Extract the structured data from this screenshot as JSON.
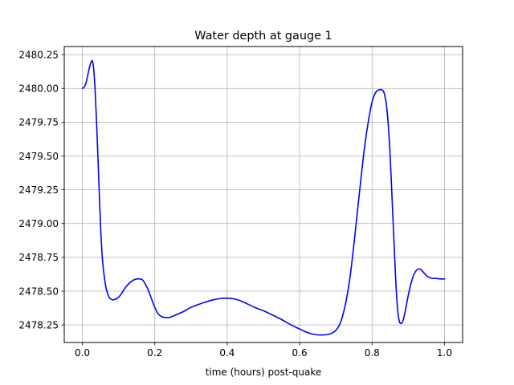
{
  "chart_data": {
    "type": "line",
    "title": "Water depth at gauge 1",
    "xlabel": "time (hours) post-quake",
    "ylabel": "",
    "xlim": [
      -0.05,
      1.05
    ],
    "ylim": [
      2478.12,
      2480.31
    ],
    "grid": true,
    "xticks": [
      0.0,
      0.2,
      0.4,
      0.6,
      0.8,
      1.0
    ],
    "xtick_labels": [
      "0.0",
      "0.2",
      "0.4",
      "0.6",
      "0.8",
      "1.0"
    ],
    "yticks": [
      2478.25,
      2478.5,
      2478.75,
      2479.0,
      2479.25,
      2479.5,
      2479.75,
      2480.0,
      2480.25
    ],
    "ytick_labels": [
      "2478.25",
      "2478.50",
      "2478.75",
      "2479.00",
      "2479.25",
      "2479.50",
      "2479.75",
      "2480.00",
      "2480.25"
    ],
    "series": [
      {
        "name": "gauge 1",
        "color": "#0000ff",
        "x": [
          0.0,
          0.005,
          0.01,
          0.015,
          0.02,
          0.025,
          0.028,
          0.031,
          0.035,
          0.04,
          0.045,
          0.05,
          0.055,
          0.06,
          0.065,
          0.07,
          0.075,
          0.08,
          0.085,
          0.09,
          0.095,
          0.1,
          0.105,
          0.11,
          0.12,
          0.13,
          0.14,
          0.15,
          0.16,
          0.165,
          0.17,
          0.18,
          0.19,
          0.2,
          0.21,
          0.22,
          0.23,
          0.24,
          0.25,
          0.28,
          0.3,
          0.33,
          0.36,
          0.38,
          0.4,
          0.42,
          0.44,
          0.46,
          0.48,
          0.5,
          0.52,
          0.55,
          0.58,
          0.6,
          0.62,
          0.64,
          0.66,
          0.68,
          0.69,
          0.7,
          0.71,
          0.72,
          0.73,
          0.74,
          0.75,
          0.76,
          0.77,
          0.78,
          0.79,
          0.8,
          0.81,
          0.82,
          0.83,
          0.835,
          0.84,
          0.845,
          0.85,
          0.855,
          0.86,
          0.865,
          0.87,
          0.875,
          0.88,
          0.885,
          0.89,
          0.895,
          0.9,
          0.905,
          0.91,
          0.915,
          0.92,
          0.925,
          0.93,
          0.935,
          0.94,
          0.945,
          0.95,
          0.955,
          0.96,
          0.965,
          0.97,
          0.98,
          0.99,
          1.0
        ],
        "values": [
          2480.0,
          2480.01,
          2480.04,
          2480.1,
          2480.16,
          2480.2,
          2480.2,
          2480.15,
          2480.0,
          2479.7,
          2479.35,
          2479.0,
          2478.75,
          2478.62,
          2478.53,
          2478.48,
          2478.45,
          2478.44,
          2478.435,
          2478.44,
          2478.445,
          2478.455,
          2478.47,
          2478.49,
          2478.53,
          2478.56,
          2478.58,
          2478.59,
          2478.59,
          2478.585,
          2478.57,
          2478.52,
          2478.45,
          2478.38,
          2478.33,
          2478.31,
          2478.305,
          2478.305,
          2478.315,
          2478.35,
          2478.38,
          2478.41,
          2478.435,
          2478.445,
          2478.448,
          2478.442,
          2478.425,
          2478.4,
          2478.375,
          2478.355,
          2478.33,
          2478.29,
          2478.245,
          2478.22,
          2478.195,
          2478.18,
          2478.175,
          2478.18,
          2478.19,
          2478.21,
          2478.25,
          2478.33,
          2478.45,
          2478.62,
          2478.85,
          2479.1,
          2479.35,
          2479.58,
          2479.76,
          2479.9,
          2479.97,
          2479.99,
          2479.985,
          2479.95,
          2479.87,
          2479.72,
          2479.5,
          2479.2,
          2478.9,
          2478.6,
          2478.38,
          2478.28,
          2478.26,
          2478.28,
          2478.33,
          2478.4,
          2478.47,
          2478.53,
          2478.58,
          2478.62,
          2478.645,
          2478.66,
          2478.665,
          2478.66,
          2478.645,
          2478.63,
          2478.615,
          2478.605,
          2478.6,
          2478.595,
          2478.595,
          2478.593,
          2478.59,
          2478.59
        ]
      }
    ]
  }
}
